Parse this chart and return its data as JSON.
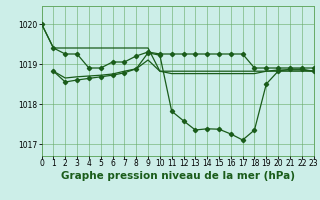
{
  "title": "Graphe pression niveau de la mer (hPa)",
  "bg_color": "#cceee8",
  "grid_color": "#66aa66",
  "line_color": "#1a5c1a",
  "xlim": [
    0,
    23
  ],
  "ylim": [
    1016.7,
    1020.45
  ],
  "yticks": [
    1017,
    1018,
    1019,
    1020
  ],
  "xticks": [
    0,
    1,
    2,
    3,
    4,
    5,
    6,
    7,
    8,
    9,
    10,
    11,
    12,
    13,
    14,
    15,
    16,
    17,
    18,
    19,
    20,
    21,
    22,
    23
  ],
  "s1_x": [
    0,
    1,
    2,
    3,
    4,
    5,
    6,
    7,
    8,
    9,
    10,
    11,
    12,
    13,
    14,
    15,
    16,
    17,
    18,
    19,
    20,
    21,
    22,
    23
  ],
  "s1_y": [
    1020.0,
    1019.4,
    1019.4,
    1019.4,
    1019.4,
    1019.4,
    1019.4,
    1019.4,
    1019.4,
    1019.4,
    1018.82,
    1018.82,
    1018.82,
    1018.82,
    1018.82,
    1018.82,
    1018.82,
    1018.82,
    1018.82,
    1018.82,
    1018.82,
    1018.82,
    1018.82,
    1018.82
  ],
  "s2_x": [
    1,
    2,
    3,
    4,
    5,
    6,
    7,
    8,
    9,
    10,
    11,
    12,
    13,
    14,
    15,
    16,
    17,
    18,
    19,
    20,
    21,
    22,
    23
  ],
  "s2_y": [
    1018.82,
    1018.65,
    1018.68,
    1018.7,
    1018.72,
    1018.75,
    1018.82,
    1018.88,
    1019.1,
    1018.82,
    1018.76,
    1018.76,
    1018.76,
    1018.76,
    1018.76,
    1018.76,
    1018.76,
    1018.76,
    1018.82,
    1018.85,
    1018.85,
    1018.85,
    1018.82
  ],
  "s3_x": [
    0,
    1,
    2,
    3,
    4,
    5,
    6,
    7,
    8,
    9,
    10,
    11,
    12,
    13,
    14,
    15,
    16,
    17,
    18,
    19,
    20,
    21,
    22,
    23
  ],
  "s3_y": [
    1020.0,
    1019.4,
    1019.25,
    1019.25,
    1018.9,
    1018.9,
    1019.05,
    1019.05,
    1019.2,
    1019.3,
    1019.25,
    1019.25,
    1019.25,
    1019.25,
    1019.25,
    1019.25,
    1019.25,
    1019.25,
    1018.9,
    1018.9,
    1018.9,
    1018.9,
    1018.9,
    1018.9
  ],
  "s4_x": [
    1,
    2,
    3,
    4,
    5,
    6,
    7,
    8,
    9,
    10,
    11,
    12,
    13,
    14,
    15,
    16,
    17,
    18,
    19,
    20,
    21,
    22,
    23
  ],
  "s4_y": [
    1018.82,
    1018.55,
    1018.6,
    1018.64,
    1018.68,
    1018.72,
    1018.78,
    1018.88,
    1019.28,
    1019.22,
    1017.82,
    1017.58,
    1017.35,
    1017.38,
    1017.37,
    1017.25,
    1017.1,
    1017.35,
    1018.5,
    1018.82,
    1018.87,
    1018.87,
    1018.82
  ],
  "tick_fontsize": 5.5,
  "title_fontsize": 7.5,
  "lw": 0.9,
  "ms": 2.2
}
